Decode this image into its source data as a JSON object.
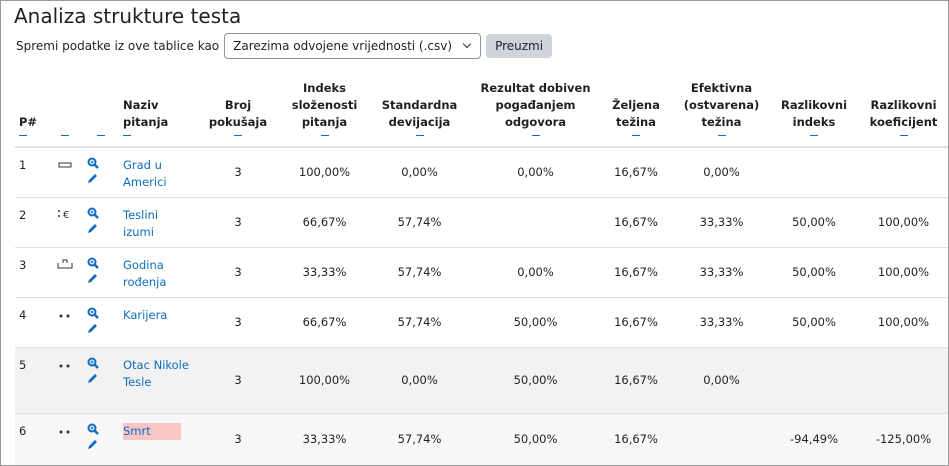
{
  "header": {
    "title": "Analiza strukture testa",
    "download_label": "Spremi podatke iz ove tablice kao",
    "format": "Zarezima odvojene vrijednosti (.csv)",
    "button": "Preuzmi"
  },
  "table": {
    "headers": [
      "P#",
      "Naziv pitanja",
      "Broj pokušaja",
      "Indeks složenosti pitanja",
      "Standardna devijacija",
      "Rezultat dobiven pogađanjem odgovora",
      "Željena težina",
      "Efektivna (ostvarena) težina",
      "Razlikovni indeks",
      "Razlikovni koeficijent"
    ],
    "rows": [
      [
        "1",
        "Grad u Americi",
        "3",
        "100,00%",
        "0,00%",
        "0,00%",
        "16,67%",
        "0,00%",
        null,
        null
      ],
      [
        "2",
        "Teslini izumi",
        "3",
        "66,67%",
        "57,74%",
        null,
        "16,67%",
        "33,33%",
        "50,00%",
        "100,00%"
      ],
      [
        "3",
        "Godina rođenja",
        "3",
        "33,33%",
        "57,74%",
        "0,00%",
        "16,67%",
        "33,33%",
        "50,00%",
        "100,00%"
      ],
      [
        "4",
        "Karijera",
        "3",
        "66,67%",
        "57,74%",
        "50,00%",
        "16,67%",
        "33,33%",
        "50,00%",
        "100,00%"
      ],
      [
        "5",
        "Otac Nikole Tesle",
        "3",
        "100,00%",
        "0,00%",
        "50,00%",
        "16,67%",
        "0,00%",
        null,
        null
      ],
      [
        "6",
        "Smrt",
        "3",
        "33,33%",
        "57,74%",
        "50,00%",
        "16,67%",
        null,
        "-94,49%",
        "-125,00%"
      ]
    ]
  }
}
